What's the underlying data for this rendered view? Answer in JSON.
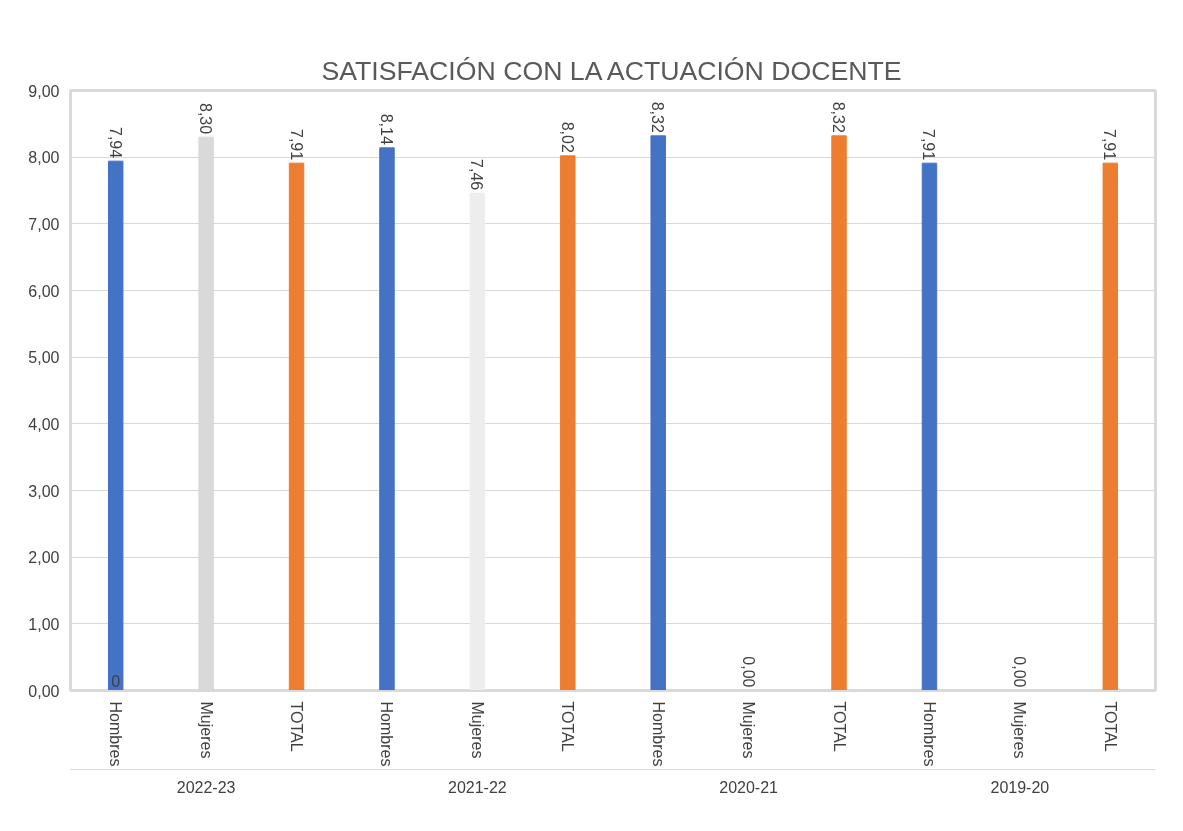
{
  "chart_data": {
    "type": "bar",
    "title": "SATISFACIÓN CON LA ACTUACIÓN DOCENTE",
    "categories": [
      "Hombres",
      "Mujeres",
      "TOTAL",
      "Hombres",
      "Mujeres",
      "TOTAL",
      "Hombres",
      "Mujeres",
      "TOTAL",
      "Hombres",
      "Mujeres",
      "TOTAL"
    ],
    "values": [
      7.94,
      8.3,
      7.91,
      8.14,
      7.46,
      8.02,
      8.32,
      0,
      8.32,
      7.91,
      0,
      7.91
    ],
    "colors": [
      "#4472c4",
      "#d9d9d9",
      "#ed7d31",
      "#4472c4",
      "#ededed",
      "#ed7d31",
      "#4472c4",
      "#d9d9d9",
      "#ed7d31",
      "#4472c4",
      "#d9d9d9",
      "#ed7d31"
    ],
    "value_labels": [
      "7,94",
      "8,30",
      "7,91",
      "8,14",
      "7,46",
      "8,02",
      "8,32",
      "0,00",
      "8,32",
      "7,91",
      "0,00",
      "7,91"
    ],
    "annotations": [
      "0",
      "2022-23",
      "2021-22",
      "2020-21",
      "2019-20"
    ],
    "ylim": [
      0,
      9
    ],
    "yticks": [
      {
        "value": 0,
        "label": "0,00"
      },
      {
        "value": 1,
        "label": "1,00"
      },
      {
        "value": 2,
        "label": "2,00"
      },
      {
        "value": 3,
        "label": "3,00"
      },
      {
        "value": 4,
        "label": "4,00"
      },
      {
        "value": 5,
        "label": "5,00"
      },
      {
        "value": 6,
        "label": "6,00"
      },
      {
        "value": 7,
        "label": "7,00"
      },
      {
        "value": 8,
        "label": "8,00"
      },
      {
        "value": 9,
        "label": "9,00"
      }
    ],
    "grid": "y"
  }
}
